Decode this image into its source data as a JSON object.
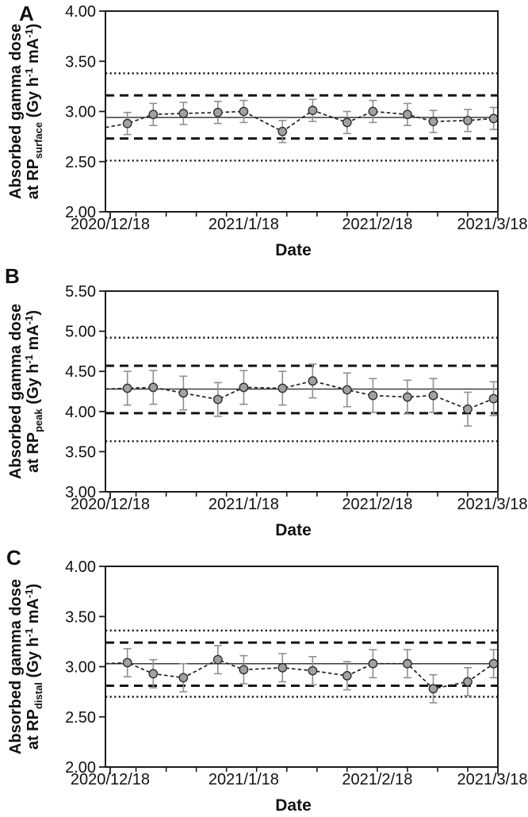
{
  "figure": {
    "background": "#ffffff",
    "colors": {
      "marker_fill": "#a1a1a1",
      "marker_edge": "#2f2f2f",
      "error_bar": "#8f8f8f",
      "series_line": "#1f1f1f",
      "ref_line": "#141414",
      "frame": "#1a1a1a",
      "text": "#111111"
    }
  },
  "chart_data": [
    {
      "type": "line",
      "panel_label": "A",
      "xlabel": "Date",
      "ylabel": {
        "line1": "Absorbed gamma dose",
        "line2_parts": [
          {
            "t": "at RP"
          },
          {
            "t": "surface",
            "style": "sub"
          },
          {
            "t": " (Gy h",
            "style": ""
          },
          {
            "t": "-1",
            "style": "sup"
          },
          {
            "t": " mA",
            "style": ""
          },
          {
            "t": "-1",
            "style": "sup"
          },
          {
            "t": ")",
            "style": ""
          }
        ]
      },
      "ylim": [
        2.0,
        4.0
      ],
      "ytick_step": 0.5,
      "y_tick_labels": [
        "2.00",
        "2.50",
        "3.00",
        "3.50",
        "4.00"
      ],
      "x_domain_days": [
        -1.1,
        90
      ],
      "x_tick_labels": [
        {
          "day": 0,
          "label": "2020/12/18"
        },
        {
          "day": 31,
          "label": "2021/1/18"
        },
        {
          "day": 62,
          "label": "2021/2/18"
        },
        {
          "day": 90,
          "label": "2021/3/18"
        }
      ],
      "x_minor_tick_days": [
        6,
        13,
        20,
        27,
        34,
        41,
        48,
        55,
        62,
        69,
        76,
        83
      ],
      "x_days": [
        4,
        10,
        17,
        25,
        31,
        40,
        47,
        55,
        61,
        69,
        75,
        83,
        89
      ],
      "values": [
        2.88,
        2.97,
        2.98,
        2.99,
        3.0,
        2.8,
        3.01,
        2.89,
        3.0,
        2.97,
        2.9,
        2.91,
        2.93
      ],
      "error_half": 0.11,
      "edge_start_value": 2.84,
      "ref_lines": {
        "mean_solid": 2.94,
        "dashed": [
          2.73,
          3.16
        ],
        "dotted": [
          2.51,
          3.38
        ]
      },
      "legend": "none",
      "grid": false
    },
    {
      "type": "line",
      "panel_label": "B",
      "xlabel": "Date",
      "ylabel": {
        "line1": "Absorbed gamma dose",
        "line2_parts": [
          {
            "t": "at RP"
          },
          {
            "t": "peak",
            "style": "sub"
          },
          {
            "t": " (Gy h",
            "style": ""
          },
          {
            "t": "-1",
            "style": "sup"
          },
          {
            "t": " mA",
            "style": ""
          },
          {
            "t": "-1",
            "style": "sup"
          },
          {
            "t": ")",
            "style": ""
          }
        ]
      },
      "ylim": [
        3.0,
        5.5
      ],
      "ytick_step": 0.5,
      "y_tick_labels": [
        "3.00",
        "3.50",
        "4.00",
        "4.50",
        "5.00",
        "5.50"
      ],
      "x_domain_days": [
        -1.1,
        90
      ],
      "x_tick_labels": [
        {
          "day": 0,
          "label": "2020/12/18"
        },
        {
          "day": 31,
          "label": "2021/1/18"
        },
        {
          "day": 62,
          "label": "2021/2/18"
        },
        {
          "day": 90,
          "label": "2021/3/18"
        }
      ],
      "x_minor_tick_days": [
        6,
        13,
        20,
        27,
        34,
        41,
        48,
        55,
        62,
        69,
        76,
        83
      ],
      "x_days": [
        4,
        10,
        17,
        25,
        31,
        40,
        47,
        55,
        61,
        69,
        75,
        83,
        89
      ],
      "values": [
        4.29,
        4.3,
        4.23,
        4.15,
        4.3,
        4.29,
        4.38,
        4.27,
        4.2,
        4.18,
        4.2,
        4.03,
        4.16
      ],
      "error_half": 0.21,
      "edge_start_value": 4.28,
      "ref_lines": {
        "mean_solid": 4.28,
        "dashed": [
          3.98,
          4.57
        ],
        "dotted": [
          3.63,
          4.92
        ]
      },
      "legend": "none",
      "grid": false
    },
    {
      "type": "line",
      "panel_label": "C",
      "xlabel": "Date",
      "ylabel": {
        "line1": "Absorbed gamma dose",
        "line2_parts": [
          {
            "t": "at RP"
          },
          {
            "t": "distal",
            "style": "sub"
          },
          {
            "t": " (Gy h",
            "style": ""
          },
          {
            "t": "-1",
            "style": "sup"
          },
          {
            "t": " mA",
            "style": ""
          },
          {
            "t": "-1",
            "style": "sup"
          },
          {
            "t": ")",
            "style": ""
          }
        ]
      },
      "ylim": [
        2.0,
        4.0
      ],
      "ytick_step": 0.5,
      "y_tick_labels": [
        "2.00",
        "2.50",
        "3.00",
        "3.50",
        "4.00"
      ],
      "x_domain_days": [
        -1.1,
        90
      ],
      "x_tick_labels": [
        {
          "day": 0,
          "label": "2020/12/18"
        },
        {
          "day": 31,
          "label": "2021/1/18"
        },
        {
          "day": 62,
          "label": "2021/2/18"
        },
        {
          "day": 90,
          "label": "2021/3/18"
        }
      ],
      "x_minor_tick_days": [
        6,
        13,
        20,
        27,
        34,
        41,
        48,
        55,
        62,
        69,
        76,
        83
      ],
      "x_days": [
        4,
        10,
        17,
        25,
        31,
        40,
        47,
        55,
        61,
        69,
        75,
        83,
        89
      ],
      "values": [
        3.04,
        2.93,
        2.89,
        3.07,
        2.97,
        2.99,
        2.96,
        2.91,
        3.03,
        3.03,
        2.78,
        2.85,
        3.03
      ],
      "error_half": 0.14,
      "edge_start_value": 3.03,
      "ref_lines": {
        "mean_solid": 3.03,
        "dashed": [
          2.81,
          3.24
        ],
        "dotted": [
          2.7,
          3.36
        ]
      },
      "legend": "none",
      "grid": false
    }
  ]
}
